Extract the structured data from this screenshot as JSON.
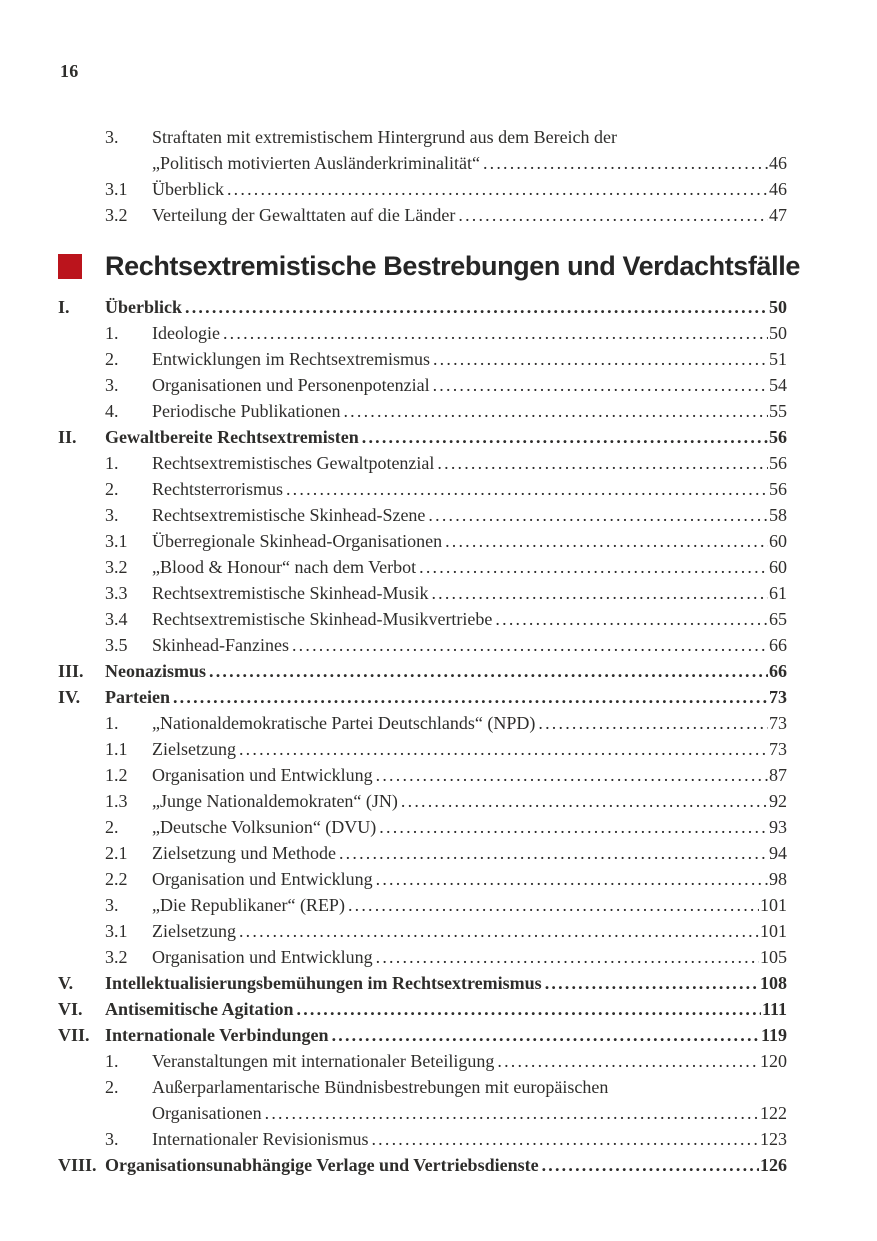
{
  "page": {
    "number": "16"
  },
  "colors": {
    "accent": "#bb141c",
    "text": "#2e2d2b",
    "heading_text": "#262626"
  },
  "section": {
    "marker": "red-square",
    "title": "Rechtsextremistische Bestrebungen und Verdachtsfälle"
  },
  "pre_toc": {
    "rows": [
      {
        "num": "3.",
        "style": "sub",
        "lines": [
          "Straftaten mit extremistischem Hintergrund aus dem Bereich der",
          "„Politisch motivierten Ausländerkriminalität“"
        ],
        "page": "46"
      },
      {
        "num": "3.1",
        "style": "sub",
        "lines": [
          "Überblick"
        ],
        "page": "46"
      },
      {
        "num": "3.2",
        "style": "sub",
        "lines": [
          "Verteilung der Gewalttaten auf die Länder"
        ],
        "page": "47"
      }
    ]
  },
  "toc": {
    "rows": [
      {
        "num": "I.",
        "style": "roman",
        "lines": [
          "Überblick"
        ],
        "page": "50"
      },
      {
        "num": "1.",
        "style": "sub",
        "lines": [
          "Ideologie"
        ],
        "page": "50"
      },
      {
        "num": "2.",
        "style": "sub",
        "lines": [
          "Entwicklungen im Rechtsextremismus"
        ],
        "page": "51"
      },
      {
        "num": "3.",
        "style": "sub",
        "lines": [
          "Organisationen und Personenpotenzial"
        ],
        "page": "54"
      },
      {
        "num": "4.",
        "style": "sub",
        "lines": [
          "Periodische Publikationen"
        ],
        "page": "55"
      },
      {
        "num": "II.",
        "style": "roman",
        "lines": [
          "Gewaltbereite Rechtsextremisten"
        ],
        "page": "56"
      },
      {
        "num": "1.",
        "style": "sub",
        "lines": [
          "Rechtsextremistisches Gewaltpotenzial"
        ],
        "page": "56"
      },
      {
        "num": "2.",
        "style": "sub",
        "lines": [
          "Rechtsterrorismus"
        ],
        "page": "56"
      },
      {
        "num": "3.",
        "style": "sub",
        "lines": [
          "Rechtsextremistische Skinhead-Szene"
        ],
        "page": "58"
      },
      {
        "num": "3.1",
        "style": "sub",
        "lines": [
          "Überregionale Skinhead-Organisationen"
        ],
        "page": "60"
      },
      {
        "num": "3.2",
        "style": "sub",
        "lines": [
          "„Blood & Honour“ nach dem Verbot"
        ],
        "page": "60"
      },
      {
        "num": "3.3",
        "style": "sub",
        "lines": [
          "Rechtsextremistische Skinhead-Musik"
        ],
        "page": "61"
      },
      {
        "num": "3.4",
        "style": "sub",
        "lines": [
          "Rechtsextremistische Skinhead-Musikvertriebe"
        ],
        "page": "65"
      },
      {
        "num": "3.5",
        "style": "sub",
        "lines": [
          "Skinhead-Fanzines"
        ],
        "page": "66"
      },
      {
        "num": "III.",
        "style": "roman",
        "lines": [
          "Neonazismus"
        ],
        "page": "66"
      },
      {
        "num": "IV.",
        "style": "roman",
        "lines": [
          "Parteien"
        ],
        "page": "73"
      },
      {
        "num": "1.",
        "style": "sub",
        "lines": [
          "„Nationaldemokratische Partei Deutschlands“ (NPD)"
        ],
        "page": "73"
      },
      {
        "num": "1.1",
        "style": "sub",
        "lines": [
          "Zielsetzung"
        ],
        "page": "73"
      },
      {
        "num": "1.2",
        "style": "sub",
        "lines": [
          "Organisation und Entwicklung"
        ],
        "page": "87"
      },
      {
        "num": "1.3",
        "style": "sub",
        "lines": [
          "„Junge Nationaldemokraten“ (JN)"
        ],
        "page": "92"
      },
      {
        "num": "2.",
        "style": "sub",
        "lines": [
          "„Deutsche Volksunion“ (DVU)"
        ],
        "page": "93"
      },
      {
        "num": "2.1",
        "style": "sub",
        "lines": [
          "Zielsetzung und Methode"
        ],
        "page": "94"
      },
      {
        "num": "2.2",
        "style": "sub",
        "lines": [
          "Organisation und Entwicklung"
        ],
        "page": "98"
      },
      {
        "num": "3.",
        "style": "sub",
        "lines": [
          "„Die Republikaner“ (REP)"
        ],
        "page": "101"
      },
      {
        "num": "3.1",
        "style": "sub",
        "lines": [
          "Zielsetzung"
        ],
        "page": "101"
      },
      {
        "num": "3.2",
        "style": "sub",
        "lines": [
          "Organisation und Entwicklung"
        ],
        "page": "105"
      },
      {
        "num": "V.",
        "style": "roman",
        "lines": [
          "Intellektualisierungsbemühungen im Rechtsextremismus"
        ],
        "page": "108"
      },
      {
        "num": "VI.",
        "style": "roman",
        "lines": [
          "Antisemitische Agitation"
        ],
        "page": "111"
      },
      {
        "num": "VII.",
        "style": "roman",
        "lines": [
          "Internationale Verbindungen"
        ],
        "page": "119"
      },
      {
        "num": "1.",
        "style": "sub",
        "lines": [
          "Veranstaltungen mit internationaler Beteiligung"
        ],
        "page": "120"
      },
      {
        "num": "2.",
        "style": "sub",
        "lines": [
          "Außerparlamentarische Bündnisbestrebungen mit europäischen",
          "Organisationen"
        ],
        "page": "122"
      },
      {
        "num": "3.",
        "style": "sub",
        "lines": [
          "Internationaler Revisionismus"
        ],
        "page": "123"
      },
      {
        "num": "VIII.",
        "style": "roman",
        "lines": [
          "Organisationsunabhängige Verlage und Vertriebsdienste"
        ],
        "page": "126"
      }
    ]
  }
}
